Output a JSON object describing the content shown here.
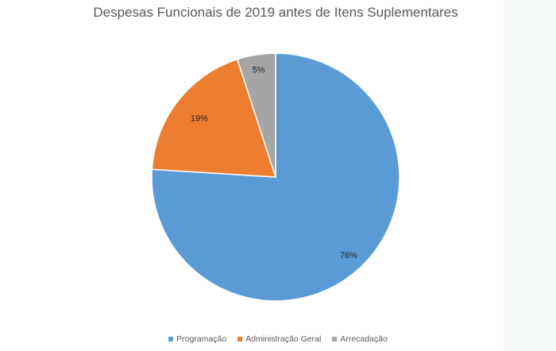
{
  "chart_data": {
    "type": "pie",
    "title": "Despesas Funcionais de 2019 antes de Itens Suplementares",
    "categories": [
      "Programação",
      "Administração Geral",
      "Arrecadação"
    ],
    "values": [
      76,
      19,
      5
    ],
    "data_labels": [
      "76%",
      "19%",
      "5%"
    ],
    "colors": [
      "#5b9bd5",
      "#ed7d31",
      "#a5a5a5"
    ],
    "legend_position": "bottom",
    "start_angle": "top, clockwise"
  }
}
